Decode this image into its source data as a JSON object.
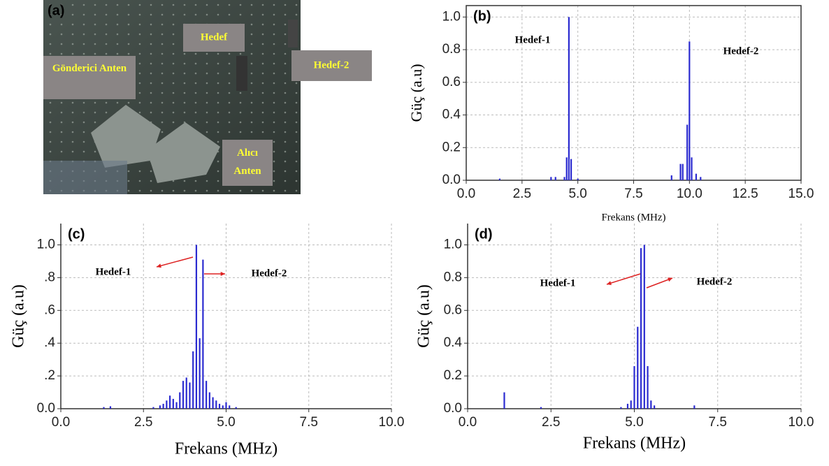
{
  "photo": {
    "panel_label": "(a)",
    "labels": [
      "Hedef",
      "Hedef-2",
      "Gönderici Anten",
      "Alıcı Anten"
    ]
  },
  "chart_data": [
    {
      "type": "stem",
      "panel_label": "(b)",
      "annotations": [
        "Hedef-1",
        "Hedef-2"
      ],
      "xlabel": "Frekans (MHz)",
      "ylabel": "Güç (a.u)",
      "color": "#2b2bd0",
      "grid": true,
      "x": [
        1.5,
        3.8,
        4.0,
        4.4,
        4.5,
        4.6,
        4.7,
        5.0,
        9.2,
        9.6,
        9.7,
        9.9,
        10.0,
        10.1,
        10.3,
        10.5
      ],
      "values": [
        0.01,
        0.02,
        0.02,
        0.02,
        0.14,
        1.0,
        0.13,
        0.01,
        0.03,
        0.1,
        0.1,
        0.34,
        0.85,
        0.14,
        0.04,
        0.02
      ],
      "xlim": [
        0,
        15
      ],
      "ylim": [
        0,
        1.07
      ],
      "xticks": [
        {
          "value": 0,
          "label": "0.0"
        },
        2.5,
        {
          "value": 5,
          "label": "5.0"
        },
        7.5,
        {
          "value": 10,
          "label": "10.0"
        },
        12.5,
        {
          "value": 15,
          "label": "15.0"
        }
      ],
      "yticks": [
        {
          "value": 0,
          "label": "0.0"
        },
        0.2,
        0.4,
        0.6,
        0.8,
        {
          "value": 1,
          "label": "1.0"
        }
      ]
    },
    {
      "type": "stem",
      "panel_label": "(c)",
      "annotations": [
        "Hedef-1",
        "Hedef-2"
      ],
      "xlabel": "Frekans (MHz)",
      "ylabel": "Güç (a.u)",
      "color": "#2b2bd0",
      "grid": true,
      "x": [
        1.3,
        1.5,
        2.8,
        3.0,
        3.1,
        3.2,
        3.3,
        3.4,
        3.5,
        3.6,
        3.7,
        3.8,
        3.9,
        4.0,
        4.1,
        4.2,
        4.3,
        4.4,
        4.5,
        4.6,
        4.7,
        4.8,
        4.9,
        5.0,
        5.1,
        5.3
      ],
      "values": [
        0.01,
        0.015,
        0.01,
        0.02,
        0.03,
        0.05,
        0.08,
        0.06,
        0.04,
        0.1,
        0.17,
        0.19,
        0.16,
        0.35,
        1.0,
        0.43,
        0.91,
        0.17,
        0.1,
        0.07,
        0.05,
        0.03,
        0.02,
        0.04,
        0.02,
        0.01
      ],
      "xlim": [
        0,
        10
      ],
      "ylim": [
        0,
        1.13
      ],
      "xticks": [
        {
          "value": 0,
          "label": "0.0"
        },
        2.5,
        {
          "value": 5,
          "label": "5.0"
        },
        7.5,
        {
          "value": 10,
          "label": "10.0"
        }
      ],
      "yticks": [
        {
          "value": 0,
          "label": "0.0"
        },
        {
          "value": 0.2,
          "label": ".2"
        },
        {
          "value": 0.4,
          "label": ".4"
        },
        {
          "value": 0.6,
          "label": ".6"
        },
        {
          "value": 0.8,
          "label": ".8"
        },
        {
          "value": 1,
          "label": "1.0"
        }
      ]
    },
    {
      "type": "stem",
      "panel_label": "(d)",
      "annotations": [
        "Hedef-1",
        "Hedef-2"
      ],
      "xlabel": "Frekans (MHz)",
      "ylabel": "Güç (a.u)",
      "color": "#2b2bd0",
      "grid": true,
      "x": [
        1.1,
        2.2,
        4.6,
        4.8,
        4.9,
        5.0,
        5.1,
        5.2,
        5.3,
        5.4,
        5.5,
        5.6,
        6.8
      ],
      "values": [
        0.1,
        0.01,
        0.01,
        0.03,
        0.05,
        0.26,
        0.5,
        0.98,
        1.0,
        0.26,
        0.05,
        0.02,
        0.02
      ],
      "xlim": [
        0,
        10
      ],
      "ylim": [
        0,
        1.13
      ],
      "xticks": [
        {
          "value": 0,
          "label": "0.0"
        },
        2.5,
        {
          "value": 5,
          "label": "5.0"
        },
        7.5,
        {
          "value": 10,
          "label": "10.0"
        }
      ],
      "yticks": [
        {
          "value": 0,
          "label": "0.0"
        },
        0.2,
        0.4,
        0.6,
        0.8,
        {
          "value": 1,
          "label": "1.0"
        }
      ]
    }
  ]
}
